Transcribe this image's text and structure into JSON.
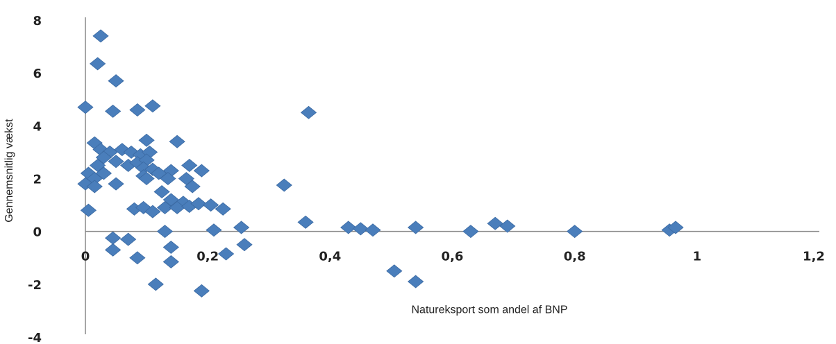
{
  "chart_data": {
    "type": "scatter",
    "xlabel": "Natureksport som andel af BNP",
    "ylabel": "Gennemsnitlig vækst",
    "xlim": [
      0,
      1.2
    ],
    "ylim": [
      -4,
      8
    ],
    "xticks": [
      "0",
      "0,2",
      "0,4",
      "0,6",
      "0,8",
      "1",
      "1,2"
    ],
    "yticks": [
      "8",
      "6",
      "4",
      "2",
      "0",
      "-2",
      "-4"
    ],
    "grid": false,
    "marker": "diamond",
    "color": "#4a7ebb",
    "series": [
      {
        "points": [
          [
            0.025,
            7.4
          ],
          [
            0.02,
            6.35
          ],
          [
            0.05,
            5.7
          ],
          [
            0.0,
            4.7
          ],
          [
            0.045,
            4.55
          ],
          [
            0.085,
            4.6
          ],
          [
            0.11,
            4.75
          ],
          [
            0.1,
            3.45
          ],
          [
            0.15,
            3.4
          ],
          [
            0.015,
            3.35
          ],
          [
            0.025,
            3.1
          ],
          [
            0.04,
            3.0
          ],
          [
            0.06,
            3.1
          ],
          [
            0.075,
            3.0
          ],
          [
            0.09,
            2.9
          ],
          [
            0.105,
            3.0
          ],
          [
            0.03,
            2.8
          ],
          [
            0.05,
            2.65
          ],
          [
            0.07,
            2.5
          ],
          [
            0.085,
            2.6
          ],
          [
            0.1,
            2.7
          ],
          [
            0.02,
            2.5
          ],
          [
            0.005,
            2.2
          ],
          [
            0.015,
            2.0
          ],
          [
            0.03,
            2.2
          ],
          [
            0.095,
            2.4
          ],
          [
            0.11,
            2.35
          ],
          [
            0.12,
            2.2
          ],
          [
            0.095,
            2.1
          ],
          [
            0.1,
            2.0
          ],
          [
            0.14,
            2.3
          ],
          [
            0.17,
            2.5
          ],
          [
            0.19,
            2.3
          ],
          [
            0.135,
            2.0
          ],
          [
            0.165,
            2.0
          ],
          [
            0.175,
            1.7
          ],
          [
            0.0,
            1.8
          ],
          [
            0.015,
            1.7
          ],
          [
            0.05,
            1.8
          ],
          [
            0.125,
            1.5
          ],
          [
            0.14,
            1.2
          ],
          [
            0.16,
            1.1
          ],
          [
            0.13,
            0.9
          ],
          [
            0.15,
            0.9
          ],
          [
            0.17,
            0.95
          ],
          [
            0.185,
            1.05
          ],
          [
            0.205,
            1.0
          ],
          [
            0.225,
            0.85
          ],
          [
            0.08,
            0.85
          ],
          [
            0.095,
            0.9
          ],
          [
            0.11,
            0.75
          ],
          [
            0.005,
            0.8
          ],
          [
            0.21,
            0.05
          ],
          [
            0.255,
            0.15
          ],
          [
            0.26,
            -0.5
          ],
          [
            0.13,
            0.0
          ],
          [
            0.14,
            -0.6
          ],
          [
            0.14,
            -1.15
          ],
          [
            0.23,
            -0.85
          ],
          [
            0.045,
            -0.7
          ],
          [
            0.045,
            -0.25
          ],
          [
            0.07,
            -0.3
          ],
          [
            0.085,
            -1.0
          ],
          [
            0.115,
            -2.0
          ],
          [
            0.19,
            -2.25
          ],
          [
            0.325,
            1.75
          ],
          [
            0.365,
            4.5
          ],
          [
            0.36,
            0.35
          ],
          [
            0.43,
            0.15
          ],
          [
            0.45,
            0.1
          ],
          [
            0.47,
            0.05
          ],
          [
            0.54,
            0.15
          ],
          [
            0.505,
            -1.5
          ],
          [
            0.54,
            -1.9
          ],
          [
            0.63,
            0.0
          ],
          [
            0.67,
            0.3
          ],
          [
            0.69,
            0.2
          ],
          [
            0.8,
            0.0
          ],
          [
            0.955,
            0.05
          ],
          [
            0.965,
            0.15
          ]
        ]
      }
    ]
  }
}
